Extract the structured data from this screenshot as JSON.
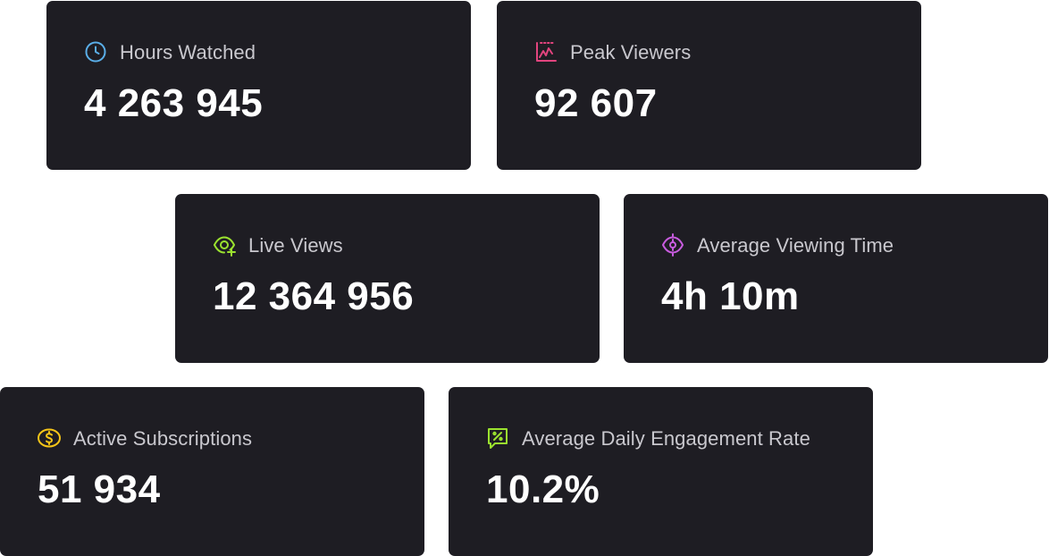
{
  "colors": {
    "card_background": "#1e1d23",
    "label_text": "#c9c8ce",
    "value_text": "#ffffff"
  },
  "metrics": [
    {
      "label": "Hours Watched",
      "value": "4 263 945",
      "icon": "clock-icon",
      "icon_color": "#5aaee8"
    },
    {
      "label": "Peak Viewers",
      "value": "92 607",
      "icon": "chart-peak-icon",
      "icon_color": "#e2447e"
    },
    {
      "label": "Live Views",
      "value": "12 364 956",
      "icon": "eye-plus-icon",
      "icon_color": "#9be22f"
    },
    {
      "label": "Average Viewing Time",
      "value": "4h 10m",
      "icon": "eye-scan-icon",
      "icon_color": "#c95ce0"
    },
    {
      "label": "Active Subscriptions",
      "value": "51 934",
      "icon": "dollar-coin-icon",
      "icon_color": "#f5c518"
    },
    {
      "label": "Average Daily Engagement Rate",
      "value": "10.2%",
      "icon": "percent-chat-icon",
      "icon_color": "#9be22f"
    }
  ]
}
